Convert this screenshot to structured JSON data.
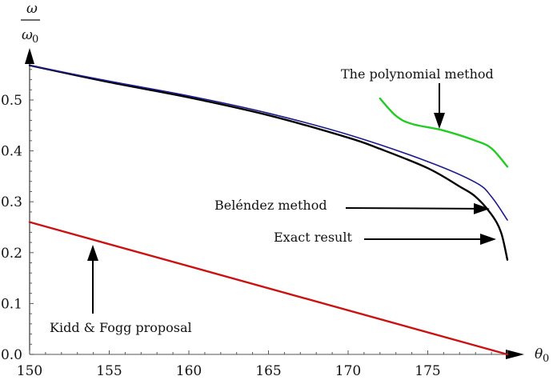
{
  "chart_data": {
    "type": "line",
    "title": "",
    "xlabel": "θ0",
    "ylabel": "ω / ω0",
    "xlim": [
      150,
      181
    ],
    "ylim": [
      0,
      0.58
    ],
    "xticks": [
      150,
      155,
      160,
      165,
      170,
      175
    ],
    "yticks": [
      0.0,
      0.1,
      0.2,
      0.3,
      0.4,
      0.5
    ],
    "xtick_labels": [
      "150",
      "155",
      "160",
      "165",
      "170",
      "175"
    ],
    "ytick_labels": [
      "0.0",
      "0.1",
      "0.2",
      "0.3",
      "0.4",
      "0.5"
    ],
    "grid": false,
    "legend": null,
    "series": [
      {
        "name": "Exact result",
        "color": "#000000",
        "x": [
          150,
          155,
          160,
          165,
          170,
          172,
          175,
          177,
          178,
          179,
          179.6,
          180
        ],
        "values": [
          0.568,
          0.535,
          0.505,
          0.47,
          0.426,
          0.404,
          0.366,
          0.33,
          0.31,
          0.275,
          0.24,
          0.186
        ]
      },
      {
        "name": "Beléndez method",
        "color": "#1a1a8c",
        "x": [
          150,
          155,
          160,
          165,
          170,
          175,
          178,
          179,
          180
        ],
        "values": [
          0.568,
          0.537,
          0.508,
          0.474,
          0.432,
          0.379,
          0.338,
          0.31,
          0.264
        ]
      },
      {
        "name": "The polynomial method",
        "color": "#22cc22",
        "x": [
          172,
          173,
          174,
          176,
          178,
          179,
          180
        ],
        "values": [
          0.503,
          0.469,
          0.453,
          0.44,
          0.42,
          0.405,
          0.369
        ]
      },
      {
        "name": "Kidd & Fogg proposal",
        "color": "#cc1111",
        "x": [
          150,
          180
        ],
        "values": [
          0.26,
          0.0
        ]
      }
    ],
    "annotations": [
      {
        "text": "The polynomial method",
        "arrow_to": [
          176,
          0.44
        ]
      },
      {
        "text": "Beléndez method",
        "arrow_to": [
          179.5,
          0.285
        ]
      },
      {
        "text": "Exact result",
        "arrow_to": [
          179.6,
          0.225
        ]
      },
      {
        "text": "Kidd & Fogg proposal",
        "arrow_to": [
          154,
          0.22
        ]
      }
    ]
  },
  "labels": {
    "y_num": "ω",
    "y_den": "ω",
    "y_den_sub": "0",
    "x_main": "θ",
    "x_sub": "0",
    "annot_poly": "The polynomial method",
    "annot_belendez": "Beléndez method",
    "annot_exact": "Exact result",
    "annot_kidd": "Kidd  & Fogg proposal"
  }
}
